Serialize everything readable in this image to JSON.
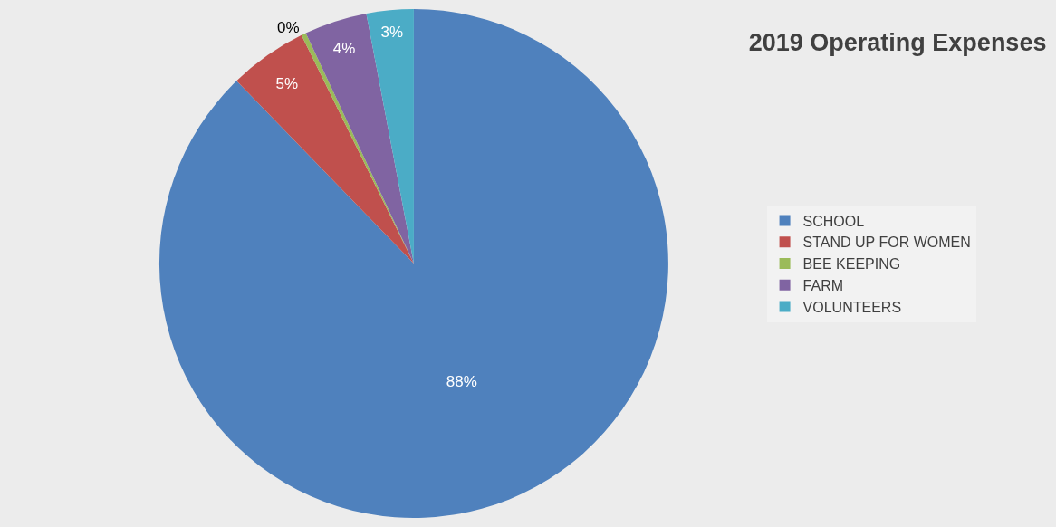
{
  "chart_data": {
    "type": "pie",
    "title": "2019 Operating Expenses",
    "categories": [
      "SCHOOL",
      "STAND UP FOR WOMEN",
      "BEE KEEPING",
      "FARM",
      "VOLUNTEERS"
    ],
    "values": [
      88,
      5,
      0.3,
      4,
      3
    ],
    "value_labels": [
      "88%",
      "5%",
      "0%",
      "4%",
      "3%"
    ],
    "colors": [
      "#4f81bd",
      "#c0504d",
      "#9bbb59",
      "#8064a2",
      "#4bacc6"
    ],
    "legend": "right"
  }
}
